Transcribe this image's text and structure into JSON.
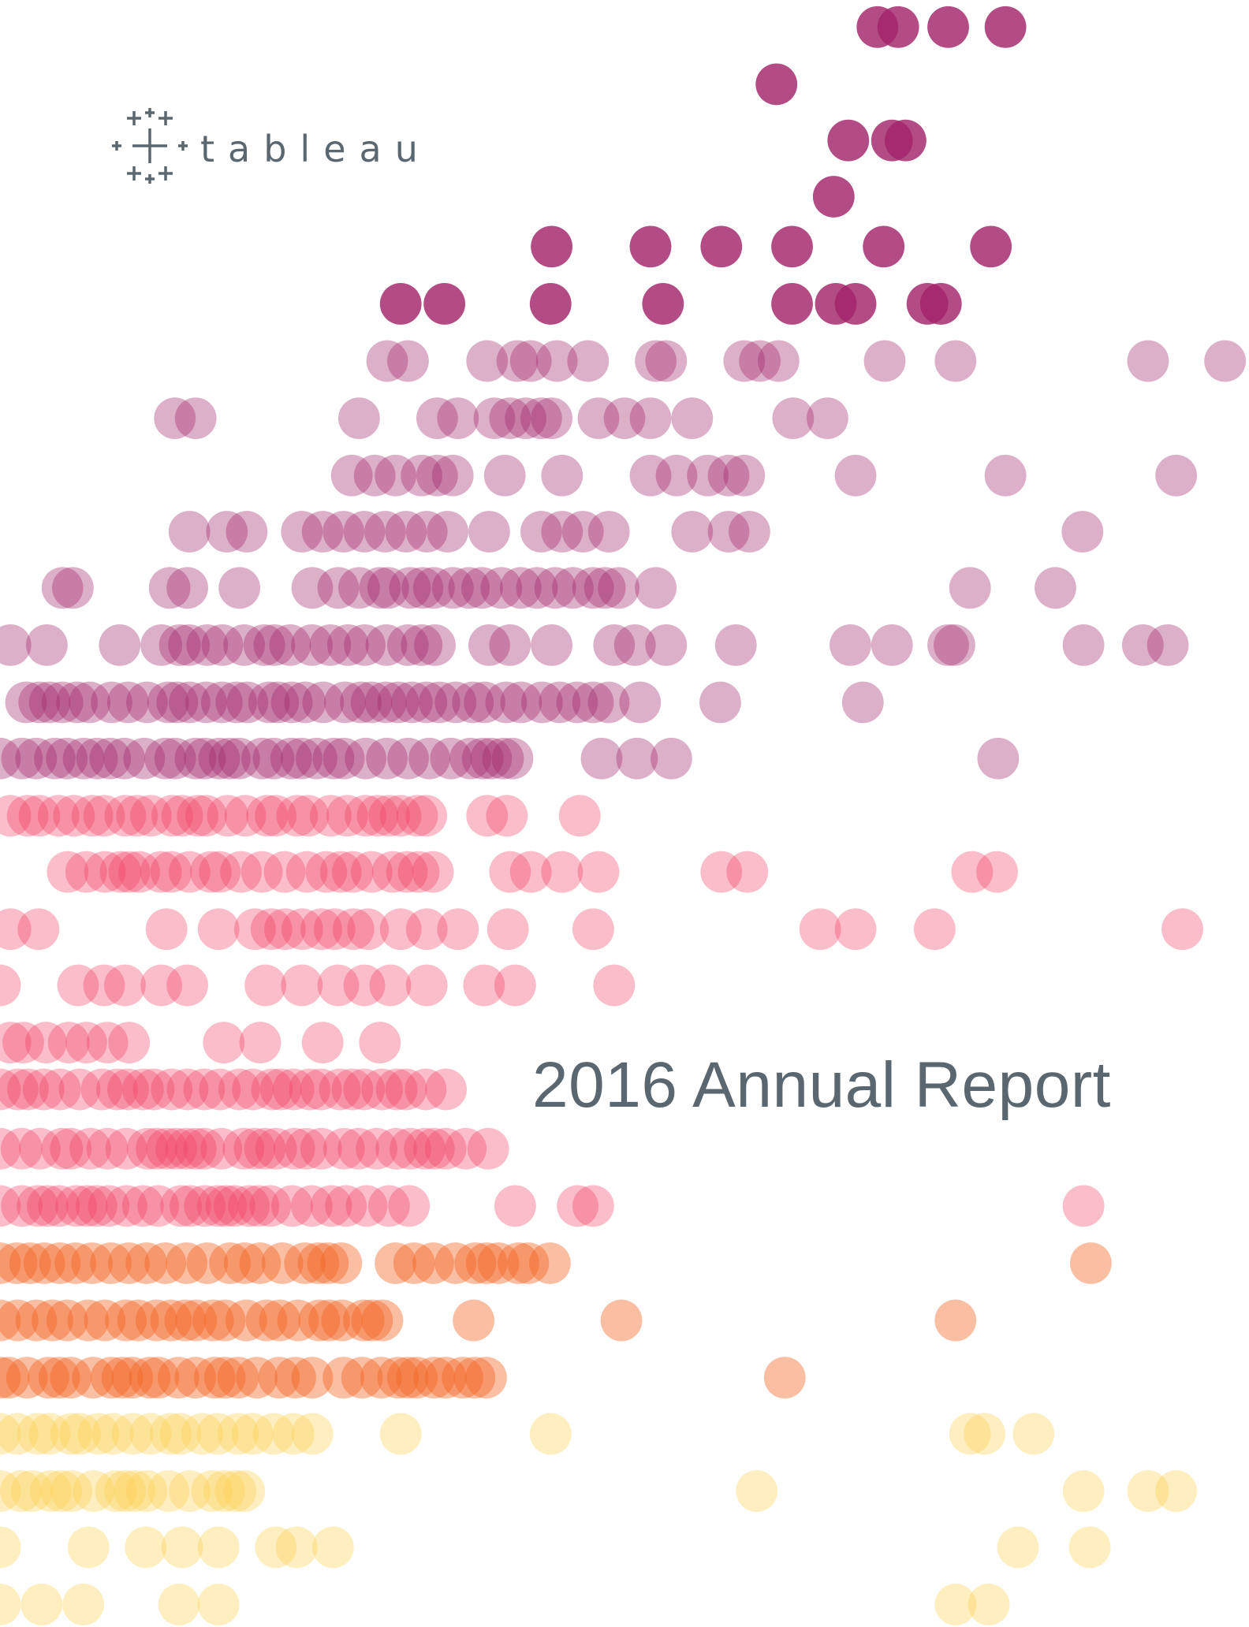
{
  "logo": {
    "wordmark": "tableau"
  },
  "title": "2016 Annual Report"
}
